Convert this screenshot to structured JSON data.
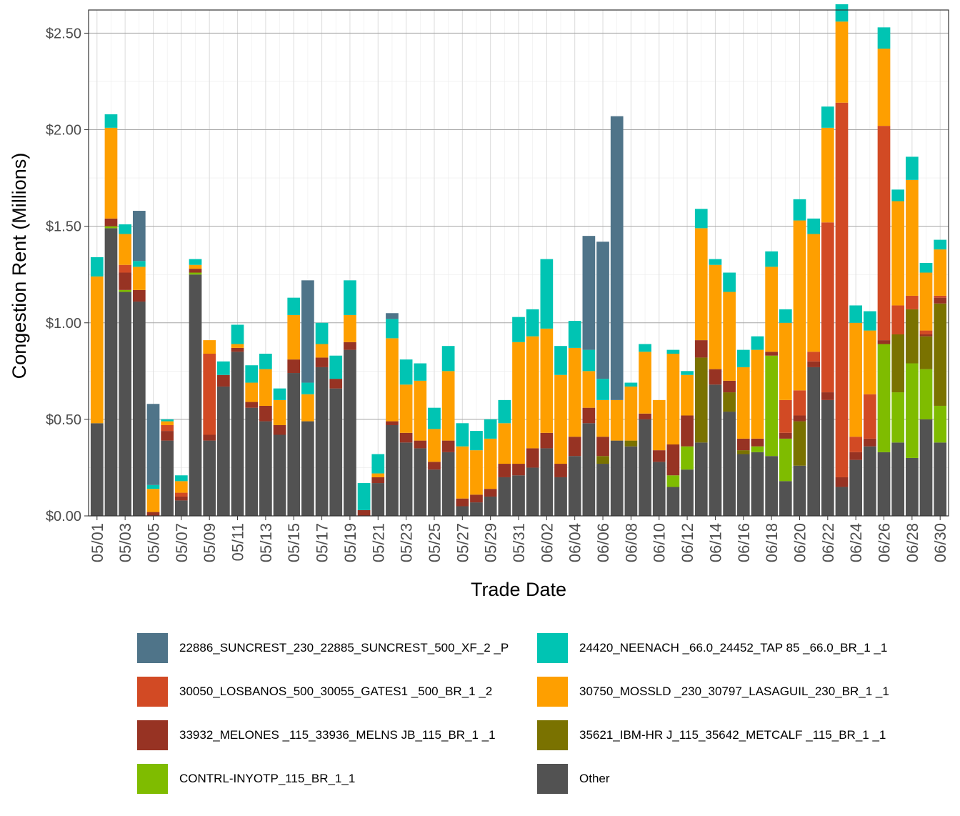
{
  "chart_data": {
    "type": "bar",
    "stacked": true,
    "xlabel": "Trade Date",
    "ylabel": "Congestion Rent (Millions)",
    "ylim": [
      0,
      2.62
    ],
    "yticks": [
      0,
      0.5,
      1.0,
      1.5,
      2.0,
      2.5
    ],
    "ytick_labels": [
      "$0.00",
      "$0.50",
      "$1.00",
      "$1.50",
      "$2.00",
      "$2.50"
    ],
    "xtick_labels": [
      "05/01",
      "05/03",
      "05/05",
      "05/07",
      "05/09",
      "05/11",
      "05/13",
      "05/15",
      "05/17",
      "05/19",
      "05/21",
      "05/23",
      "05/25",
      "05/27",
      "05/29",
      "05/31",
      "06/02",
      "06/04",
      "06/06",
      "06/08",
      "06/10",
      "06/12",
      "06/14",
      "06/16",
      "06/18",
      "06/20",
      "06/22",
      "06/24",
      "06/26",
      "06/28",
      "06/30"
    ],
    "legend_position": "bottom",
    "categories": [
      "05/01",
      "05/02",
      "05/03",
      "05/04",
      "05/05",
      "05/06",
      "05/07",
      "05/08",
      "05/09",
      "05/10",
      "05/11",
      "05/12",
      "05/13",
      "05/14",
      "05/15",
      "05/16",
      "05/17",
      "05/18",
      "05/19",
      "05/20",
      "05/21",
      "05/22",
      "05/23",
      "05/24",
      "05/25",
      "05/26",
      "05/27",
      "05/28",
      "05/29",
      "05/30",
      "05/31",
      "06/01",
      "06/02",
      "06/03",
      "06/04",
      "06/05",
      "06/06",
      "06/07",
      "06/08",
      "06/09",
      "06/10",
      "06/11",
      "06/12",
      "06/13",
      "06/14",
      "06/15",
      "06/16",
      "06/17",
      "06/18",
      "06/19",
      "06/20",
      "06/21",
      "06/22",
      "06/23",
      "06/24",
      "06/25",
      "06/26",
      "06/27",
      "06/28",
      "06/29",
      "06/30"
    ],
    "series": [
      {
        "name": "Other",
        "color": "#525252",
        "values": [
          0.48,
          1.49,
          1.16,
          1.11,
          0.0,
          0.39,
          0.08,
          1.25,
          0.39,
          0.67,
          0.85,
          0.56,
          0.49,
          0.42,
          0.74,
          0.49,
          0.77,
          0.66,
          0.86,
          0.0,
          0.17,
          0.47,
          0.38,
          0.35,
          0.24,
          0.33,
          0.05,
          0.07,
          0.1,
          0.2,
          0.21,
          0.25,
          0.35,
          0.2,
          0.31,
          0.48,
          0.27,
          0.39,
          0.36,
          0.5,
          0.28,
          0.15,
          0.24,
          0.38,
          0.68,
          0.54,
          0.32,
          0.33,
          0.31,
          0.18,
          0.26,
          0.77,
          0.6,
          0.15,
          0.29,
          0.36,
          0.33,
          0.38,
          0.3,
          0.5,
          0.38
        ]
      },
      {
        "name": "CONTRL-INYOTP_115_BR_1_1",
        "color": "#7fbc00",
        "values": [
          0,
          0.01,
          0.01,
          0,
          0,
          0,
          0,
          0.01,
          0,
          0,
          0,
          0,
          0,
          0,
          0,
          0,
          0,
          0,
          0,
          0,
          0,
          0,
          0,
          0,
          0,
          0,
          0,
          0,
          0,
          0,
          0,
          0,
          0,
          0,
          0,
          0,
          0,
          0,
          0,
          0,
          0,
          0.06,
          0.12,
          0,
          0,
          0,
          0,
          0.03,
          0.52,
          0.22,
          0,
          0,
          0,
          0,
          0,
          0,
          0.56,
          0.26,
          0.49,
          0.26,
          0.19
        ]
      },
      {
        "name": "35621_IBM-HR J_115_35642_METCALF _115_BR_1 _1",
        "color": "#7a7200",
        "values": [
          0,
          0,
          0,
          0,
          0,
          0,
          0,
          0,
          0,
          0,
          0,
          0,
          0,
          0,
          0,
          0,
          0,
          0,
          0,
          0,
          0,
          0,
          0,
          0,
          0,
          0,
          0,
          0,
          0,
          0,
          0,
          0,
          0,
          0,
          0,
          0,
          0.04,
          0,
          0.03,
          0,
          0,
          0,
          0,
          0.44,
          0,
          0.1,
          0.02,
          0,
          0,
          0,
          0.23,
          0,
          0,
          0,
          0,
          0,
          0,
          0.3,
          0.28,
          0.17,
          0.53
        ]
      },
      {
        "name": "33932_MELONES _115_33936_MELNS JB_115_BR_1 _1",
        "color": "#973323",
        "values": [
          0,
          0.04,
          0.09,
          0.06,
          0.02,
          0.05,
          0.02,
          0.02,
          0.03,
          0.06,
          0.02,
          0.03,
          0.08,
          0.05,
          0.07,
          0,
          0.05,
          0.05,
          0.04,
          0.03,
          0.03,
          0.02,
          0.05,
          0.04,
          0.04,
          0.06,
          0.04,
          0.04,
          0.04,
          0.07,
          0.06,
          0.1,
          0.08,
          0.07,
          0.1,
          0.08,
          0.1,
          0,
          0,
          0.03,
          0.06,
          0.16,
          0.16,
          0.09,
          0.08,
          0.06,
          0.06,
          0.04,
          0.02,
          0.03,
          0.03,
          0.03,
          0.04,
          0.05,
          0.04,
          0.04,
          0.02,
          0,
          0,
          0.01,
          0.03
        ]
      },
      {
        "name": "30050_LOSBANOS_500_30055_GATES1 _500_BR_1 _2",
        "color": "#d24a24",
        "values": [
          0,
          0,
          0.04,
          0,
          0,
          0.03,
          0.02,
          0,
          0.42,
          0,
          0,
          0,
          0,
          0,
          0,
          0,
          0,
          0,
          0,
          0,
          0,
          0,
          0,
          0,
          0,
          0,
          0,
          0,
          0,
          0,
          0,
          0,
          0,
          0,
          0,
          0,
          0,
          0,
          0,
          0,
          0,
          0,
          0,
          0,
          0,
          0,
          0,
          0,
          0,
          0.17,
          0.13,
          0.05,
          0.88,
          1.94,
          0.08,
          0.23,
          1.11,
          0.15,
          0.07,
          0.02,
          0.01
        ]
      },
      {
        "name": "30750_MOSSLD _230_30797_LASAGUIL_230_BR_1 _1",
        "color": "#fe9f00",
        "values": [
          0.76,
          0.47,
          0.16,
          0.12,
          0.12,
          0.02,
          0.06,
          0.02,
          0.07,
          0,
          0.02,
          0.1,
          0.19,
          0.13,
          0.23,
          0.14,
          0.07,
          0,
          0.14,
          0,
          0.02,
          0.43,
          0.25,
          0.31,
          0.17,
          0.36,
          0.27,
          0.23,
          0.26,
          0.21,
          0.63,
          0.58,
          0.54,
          0.46,
          0.46,
          0.19,
          0.19,
          0.21,
          0.28,
          0.32,
          0.26,
          0.47,
          0.21,
          0.58,
          0.54,
          0.46,
          0.37,
          0.46,
          0.44,
          0.4,
          0.88,
          0.61,
          0.49,
          0.42,
          0.59,
          0.33,
          0.4,
          0.54,
          0.6,
          0.3,
          0.24
        ]
      },
      {
        "name": "24420_NEENACH _66.0_24452_TAP 85 _66.0_BR_1 _1",
        "color": "#00c4b3",
        "values": [
          0.1,
          0.07,
          0.05,
          0.03,
          0.02,
          0.01,
          0.03,
          0.03,
          0,
          0.07,
          0.1,
          0.09,
          0.08,
          0.06,
          0.09,
          0.06,
          0.11,
          0.12,
          0.18,
          0.14,
          0.1,
          0.1,
          0.13,
          0.09,
          0.11,
          0.13,
          0.12,
          0.1,
          0.1,
          0.12,
          0.13,
          0.14,
          0.36,
          0.15,
          0.14,
          0.11,
          0.11,
          0,
          0.02,
          0.04,
          0,
          0.02,
          0.02,
          0.1,
          0.03,
          0.1,
          0.09,
          0.07,
          0.08,
          0.07,
          0.11,
          0.08,
          0.11,
          0.09,
          0.09,
          0.1,
          0.11,
          0.06,
          0.12,
          0.05,
          0.05
        ]
      },
      {
        "name": "22886_SUNCREST_230_22885_SUNCREST_500_XF_2 _P",
        "color": "#4f7489",
        "values": [
          0,
          0,
          0,
          0.26,
          0.42,
          0,
          0,
          0,
          0,
          0,
          0,
          0,
          0,
          0,
          0,
          0.53,
          0,
          0,
          0,
          0,
          0,
          0.03,
          0,
          0,
          0,
          0,
          0,
          0,
          0,
          0,
          0,
          0,
          0,
          0,
          0,
          0.59,
          0.71,
          1.47,
          0,
          0,
          0,
          0,
          0,
          0,
          0,
          0,
          0,
          0,
          0,
          0,
          0,
          0,
          0,
          0,
          0,
          0,
          0,
          0,
          0,
          0,
          0
        ]
      }
    ]
  },
  "legend": {
    "items": [
      {
        "label": "22886_SUNCREST_230_22885_SUNCREST_500_XF_2 _P",
        "color": "#4f7489"
      },
      {
        "label": "24420_NEENACH _66.0_24452_TAP 85 _66.0_BR_1 _1",
        "color": "#00c4b3"
      },
      {
        "label": "30050_LOSBANOS_500_30055_GATES1 _500_BR_1 _2",
        "color": "#d24a24"
      },
      {
        "label": "30750_MOSSLD _230_30797_LASAGUIL_230_BR_1 _1",
        "color": "#fe9f00"
      },
      {
        "label": "33932_MELONES _115_33936_MELNS JB_115_BR_1 _1",
        "color": "#973323"
      },
      {
        "label": "35621_IBM-HR J_115_35642_METCALF _115_BR_1 _1",
        "color": "#7a7200"
      },
      {
        "label": "CONTRL-INYOTP_115_BR_1_1",
        "color": "#7fbc00"
      },
      {
        "label": "Other",
        "color": "#525252"
      }
    ]
  }
}
